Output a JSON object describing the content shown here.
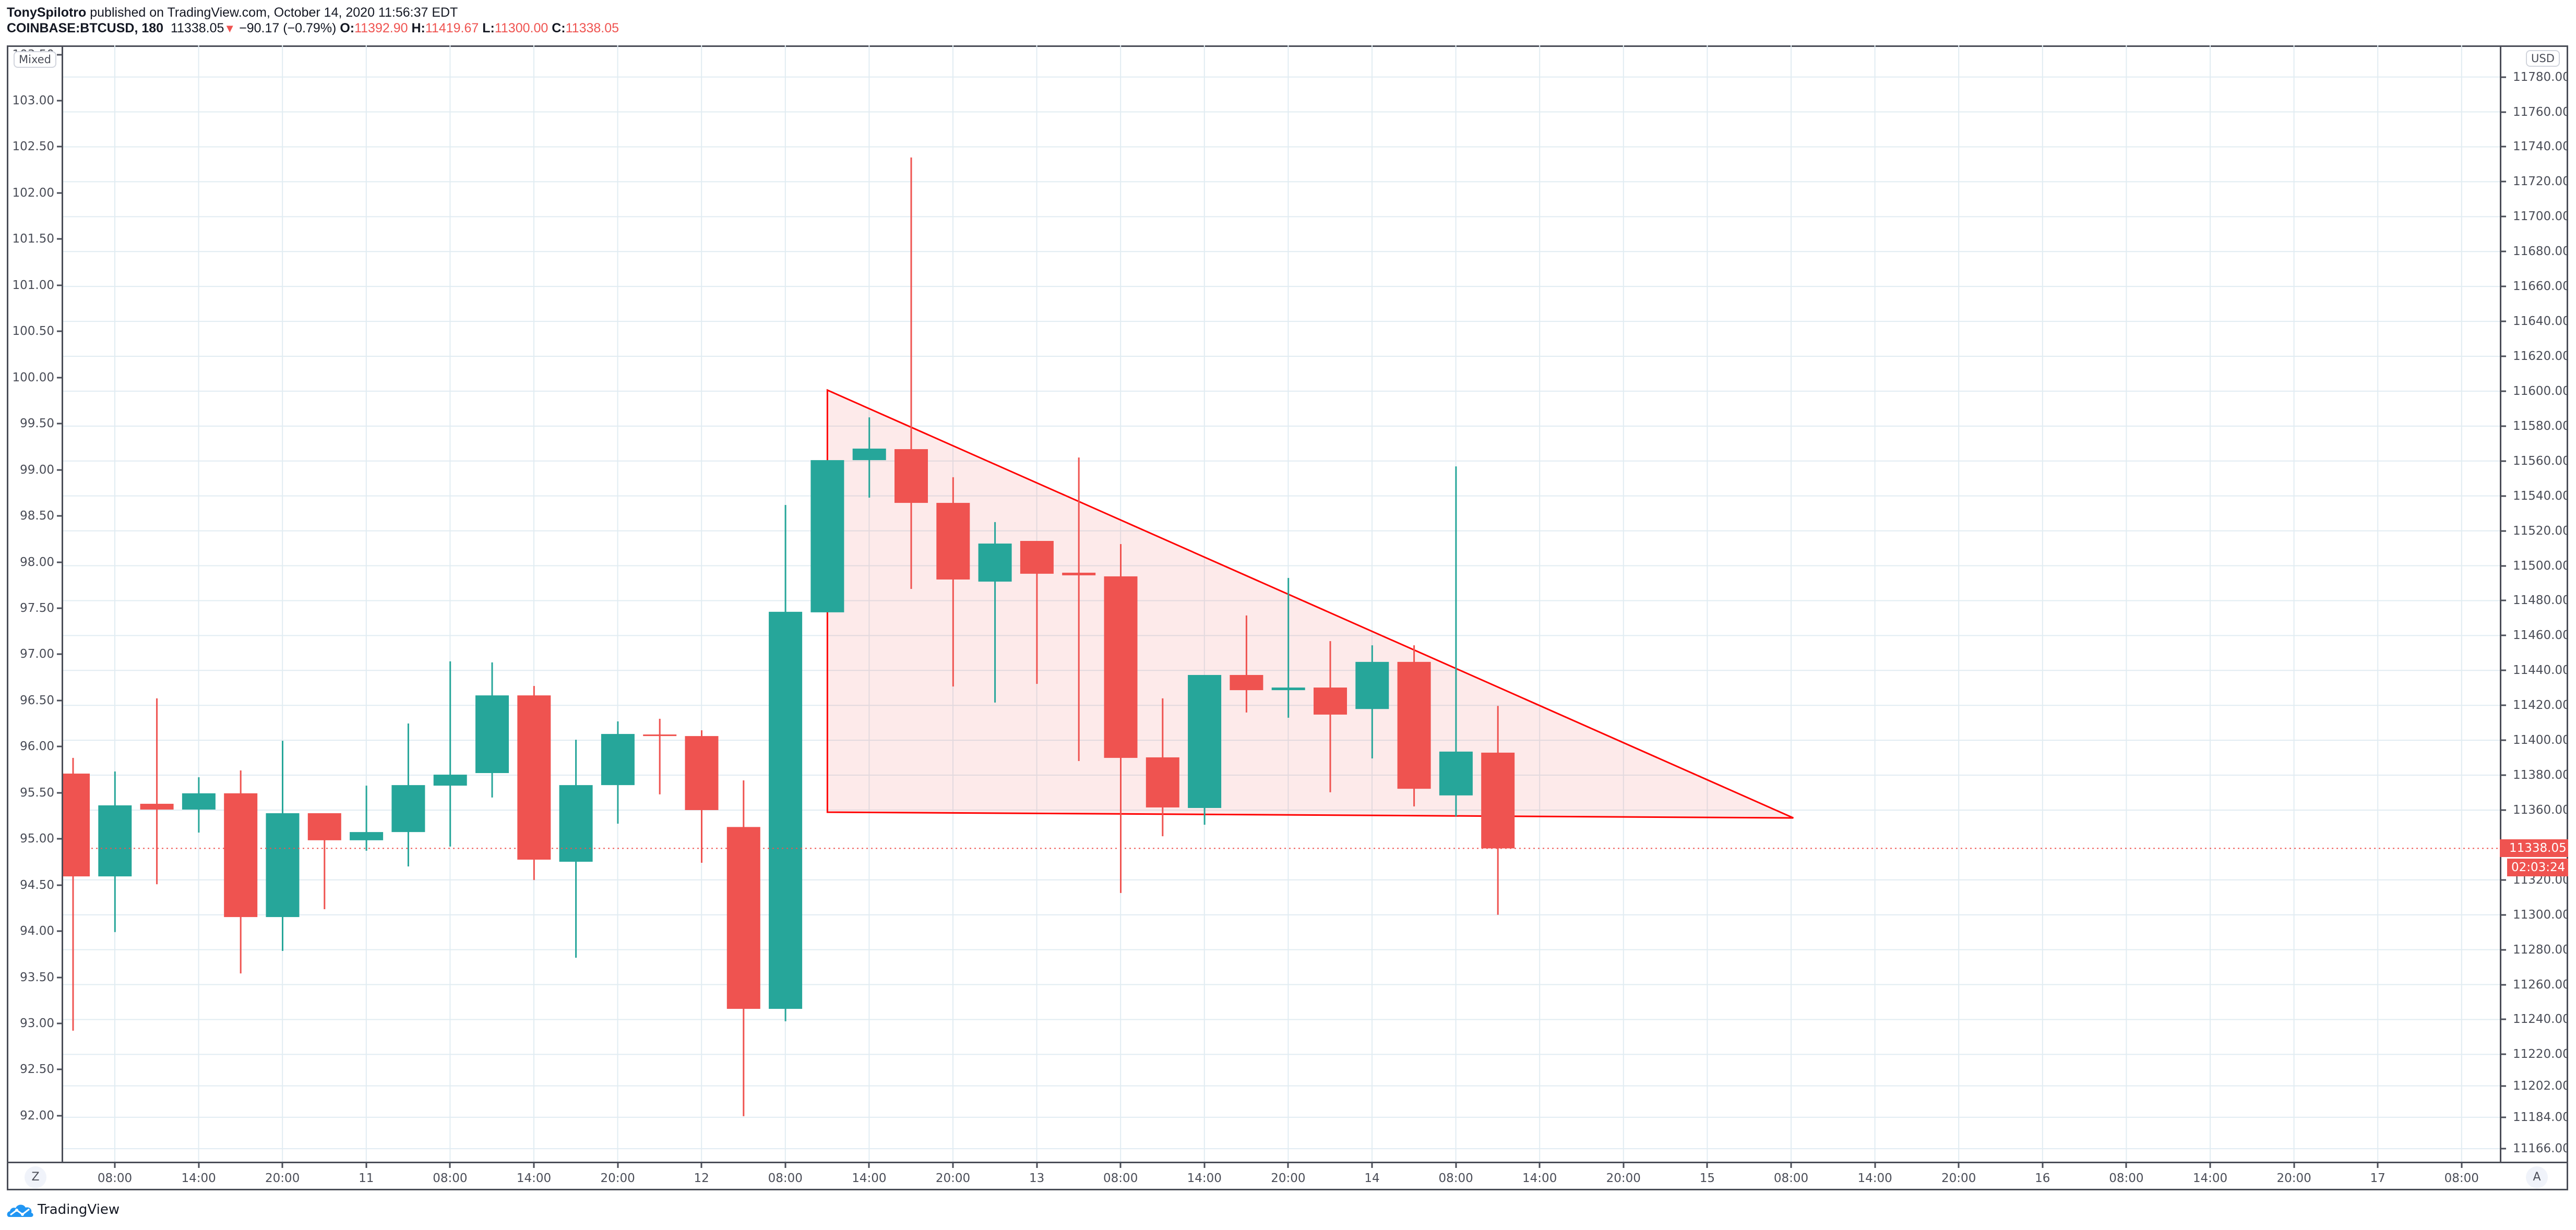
{
  "header": {
    "author": "TonySpilotro",
    "published_text": "published on TradingView.com, October 14, 2020 11:56:37 EDT",
    "symbol": "COINBASE:BTCUSD, 180",
    "last": "11338.05",
    "change_arrow": "▼",
    "change": "−90.17 (−0.79%)",
    "o_label": "O:",
    "o_value": "11392.90",
    "h_label": "H:",
    "h_value": "11419.67",
    "l_label": "L:",
    "l_value": "11300.00",
    "c_label": "C:",
    "c_value": "11338.05"
  },
  "controls": {
    "mixed_label": "Mixed",
    "currency_label": "USD",
    "z_button": "Z",
    "a_button": "A"
  },
  "price_tags": {
    "last_price": "11338.05",
    "countdown": "02:03:24"
  },
  "branding": {
    "logo_text": "TradingView"
  },
  "colors": {
    "up": "#26a69a",
    "down": "#ef5350",
    "pattern_line": "#ff0000",
    "pattern_fill": "rgba(239,83,80,0.12)",
    "grid": "#e1ecf2",
    "axis": "#4a4d57"
  },
  "chart_data": {
    "type": "candlestick",
    "title": "COINBASE:BTCUSD, 180",
    "interval_minutes": 180,
    "ylabel_right": "USD",
    "ylim_right": [
      11160,
      11805
    ],
    "right_ticks": [
      "11800.00",
      "11780.00",
      "11760.00",
      "11740.00",
      "11720.00",
      "11700.00",
      "11680.00",
      "11660.00",
      "11640.00",
      "11620.00",
      "11600.00",
      "11580.00",
      "11560.00",
      "11540.00",
      "11520.00",
      "11500.00",
      "11480.00",
      "11460.00",
      "11440.00",
      "11420.00",
      "11400.00",
      "11380.00",
      "11360.00",
      "11320.00",
      "11300.00",
      "11280.00",
      "11260.00",
      "11240.00",
      "11220.00",
      "11202.00",
      "11184.00",
      "11166.00"
    ],
    "left_axis_mode": "Mixed",
    "left_ticks": [
      "103.50",
      "103.00",
      "102.50",
      "102.00",
      "101.50",
      "101.00",
      "100.50",
      "100.00",
      "99.50",
      "99.00",
      "98.50",
      "98.00",
      "97.50",
      "97.00",
      "96.50",
      "96.00",
      "95.50",
      "95.00",
      "94.50",
      "94.00",
      "93.50",
      "93.00",
      "92.50",
      "92.00"
    ],
    "x_ticks": [
      "08:00",
      "14:00",
      "20:00",
      "11",
      "08:00",
      "14:00",
      "20:00",
      "12",
      "08:00",
      "14:00",
      "20:00",
      "13",
      "08:00",
      "14:00",
      "20:00",
      "14",
      "08:00",
      "14:00",
      "20:00",
      "15",
      "08:00",
      "14:00",
      "20:00",
      "16",
      "08:00",
      "14:00",
      "20:00",
      "17",
      "08:00"
    ],
    "last_price_line": 11338.05,
    "ohlc": [
      {
        "o": 11380.9,
        "h": 11389.9,
        "l": 11233.6,
        "c": 11322.0
      },
      {
        "o": 11322.0,
        "h": 11382.1,
        "l": 11290.1,
        "c": 11362.7
      },
      {
        "o": 11363.6,
        "h": 11424.0,
        "l": 11317.5,
        "c": 11360.3
      },
      {
        "o": 11360.3,
        "h": 11378.8,
        "l": 11347.1,
        "c": 11369.6
      },
      {
        "o": 11369.6,
        "h": 11382.7,
        "l": 11266.4,
        "c": 11298.7
      },
      {
        "o": 11298.7,
        "h": 11399.7,
        "l": 11279.3,
        "c": 11358.2
      },
      {
        "o": 11358.2,
        "h": 11358.2,
        "l": 11303.2,
        "c": 11342.7
      },
      {
        "o": 11342.7,
        "h": 11374.0,
        "l": 11336.7,
        "c": 11347.4
      },
      {
        "o": 11347.4,
        "h": 11409.6,
        "l": 11327.7,
        "c": 11374.3
      },
      {
        "o": 11374.0,
        "h": 11445.2,
        "l": 11339.1,
        "c": 11380.3
      },
      {
        "o": 11381.2,
        "h": 11444.6,
        "l": 11367.2,
        "c": 11425.7
      },
      {
        "o": 11425.7,
        "h": 11431.1,
        "l": 11319.9,
        "c": 11331.6
      },
      {
        "o": 11330.4,
        "h": 11400.3,
        "l": 11275.4,
        "c": 11374.3
      },
      {
        "o": 11374.3,
        "h": 11410.8,
        "l": 11352.2,
        "c": 11403.6
      },
      {
        "o": 11403.3,
        "h": 11412.3,
        "l": 11369.0,
        "c": 11402.4
      },
      {
        "o": 11402.4,
        "h": 11405.7,
        "l": 11329.8,
        "c": 11360.0
      },
      {
        "o": 11350.3,
        "h": 11377.0,
        "l": 11184.6,
        "c": 11246.1
      },
      {
        "o": 11246.1,
        "h": 11534.8,
        "l": 11239.0,
        "c": 11473.6
      },
      {
        "o": 11473.3,
        "h": 11560.5,
        "l": 11473.3,
        "c": 11560.5
      },
      {
        "o": 11560.5,
        "h": 11585.0,
        "l": 11539.0,
        "c": 11567.1
      },
      {
        "o": 11566.8,
        "h": 11733.9,
        "l": 11486.7,
        "c": 11536.0
      },
      {
        "o": 11536.0,
        "h": 11550.7,
        "l": 11430.8,
        "c": 11492.1
      },
      {
        "o": 11490.9,
        "h": 11525.0,
        "l": 11421.6,
        "c": 11512.7
      },
      {
        "o": 11514.2,
        "h": 11514.2,
        "l": 11432.3,
        "c": 11495.4
      },
      {
        "o": 11496.0,
        "h": 11562.0,
        "l": 11388.1,
        "c": 11494.5
      },
      {
        "o": 11493.9,
        "h": 11512.4,
        "l": 11312.5,
        "c": 11389.9
      },
      {
        "o": 11390.2,
        "h": 11424.0,
        "l": 11345.0,
        "c": 11361.5
      },
      {
        "o": 11361.2,
        "h": 11437.4,
        "l": 11351.6,
        "c": 11437.4
      },
      {
        "o": 11437.4,
        "h": 11471.5,
        "l": 11415.9,
        "c": 11428.7
      },
      {
        "o": 11428.7,
        "h": 11493.0,
        "l": 11412.9,
        "c": 11430.2
      },
      {
        "o": 11430.2,
        "h": 11456.8,
        "l": 11370.2,
        "c": 11414.7
      },
      {
        "o": 11417.9,
        "h": 11454.4,
        "l": 11389.6,
        "c": 11444.9
      },
      {
        "o": 11444.9,
        "h": 11454.4,
        "l": 11362.1,
        "c": 11372.2
      },
      {
        "o": 11368.4,
        "h": 11556.9,
        "l": 11356.4,
        "c": 11393.5
      },
      {
        "o": 11392.9,
        "h": 11419.67,
        "l": 11300.0,
        "c": 11338.05
      }
    ],
    "annotations": [
      {
        "type": "descending_triangle",
        "points": [
          {
            "bar": 18,
            "price": 11600.6
          },
          {
            "bar": 41.05,
            "price": 11355.5
          },
          {
            "bar": 18,
            "price": 11358.8
          }
        ]
      }
    ],
    "grid": true
  }
}
